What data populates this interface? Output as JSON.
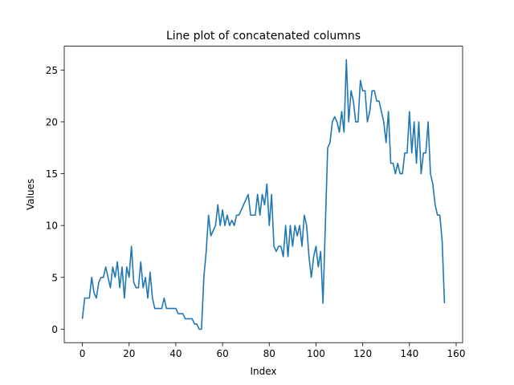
{
  "chart_data": {
    "type": "line",
    "title": "Line plot of concatenated columns",
    "xlabel": "Index",
    "ylabel": "Values",
    "xlim": [
      -7.75,
      162.75
    ],
    "ylim": [
      -1.3,
      27.3
    ],
    "xticks": [
      0,
      20,
      40,
      60,
      80,
      100,
      120,
      140,
      160
    ],
    "yticks": [
      0,
      5,
      10,
      15,
      20,
      25
    ],
    "grid": false,
    "color": "#1f77b4",
    "series": [
      {
        "values": [
          1,
          3,
          3,
          3,
          5,
          3.5,
          3,
          4.5,
          5,
          5,
          6,
          5,
          4,
          6,
          5,
          6.5,
          4,
          6,
          3,
          6,
          5,
          8,
          4.5,
          4,
          4,
          6.5,
          4,
          5,
          3,
          5.5,
          3,
          2,
          2,
          2,
          2,
          3,
          2,
          2,
          2,
          2,
          2,
          1.5,
          1.5,
          1.5,
          1,
          1,
          1,
          1,
          0.5,
          0.5,
          0,
          0,
          5,
          7.5,
          11,
          9,
          9.5,
          10,
          12,
          10,
          11.5,
          10,
          11,
          10,
          10.5,
          10,
          11,
          11,
          11.5,
          12,
          12.5,
          13,
          11,
          11,
          11,
          13,
          11,
          13,
          12,
          14,
          10,
          13,
          8,
          7.5,
          8,
          8,
          7,
          10,
          7,
          10,
          8,
          10,
          9,
          10,
          8,
          11,
          10,
          7,
          5,
          7,
          8,
          6,
          7.5,
          2.5,
          10,
          17.5,
          18,
          20,
          20.5,
          20,
          19,
          21,
          19,
          26,
          20,
          23,
          22,
          20,
          20,
          24,
          23,
          23,
          20,
          21,
          23,
          23,
          22,
          22,
          21,
          20,
          18,
          21,
          16,
          16,
          15,
          16,
          15,
          15,
          17,
          17,
          21,
          17,
          20,
          16,
          20,
          15,
          17,
          17,
          20,
          15,
          14,
          12,
          11,
          11,
          8.5,
          2.5
        ]
      }
    ]
  }
}
